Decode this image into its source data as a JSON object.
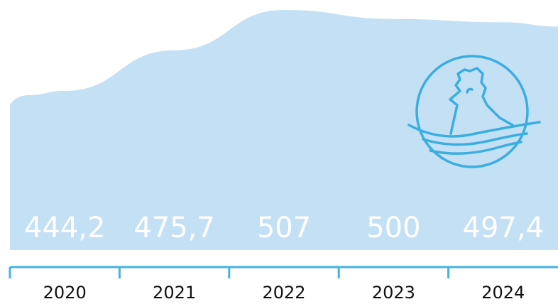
{
  "colors": {
    "area": "#c4e0f5",
    "axis": "#43b3e0",
    "icon": "#3aaee0",
    "value_label": "#ffffff",
    "year_label": "#111111"
  },
  "icon": "chicken-in-nest-icon",
  "chart_data": {
    "type": "area",
    "categories": [
      "2020",
      "2021",
      "2022",
      "2023",
      "2024"
    ],
    "values": [
      444.2,
      475.7,
      507,
      500,
      497.4
    ],
    "value_labels": [
      "444,2",
      "475,7",
      "507",
      "500",
      "497,4"
    ],
    "title": "",
    "xlabel": "",
    "ylabel": "",
    "grid": false,
    "legend": "none"
  }
}
